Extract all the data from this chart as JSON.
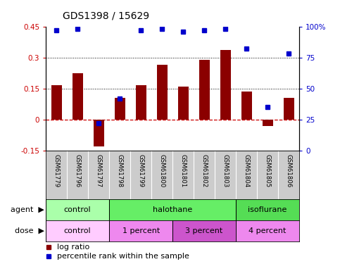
{
  "title": "GDS1398 / 15629",
  "samples": [
    "GSM61779",
    "GSM61796",
    "GSM61797",
    "GSM61798",
    "GSM61799",
    "GSM61800",
    "GSM61801",
    "GSM61802",
    "GSM61803",
    "GSM61804",
    "GSM61805",
    "GSM61806"
  ],
  "log_ratio": [
    0.165,
    0.225,
    -0.13,
    0.105,
    0.165,
    0.265,
    0.16,
    0.29,
    0.335,
    0.135,
    -0.03,
    0.105
  ],
  "percentile_rank": [
    97,
    98,
    22,
    42,
    97,
    98,
    96,
    97,
    98,
    82,
    35,
    78
  ],
  "ylim_left": [
    -0.15,
    0.45
  ],
  "ylim_right": [
    0,
    100
  ],
  "bar_color": "#8B0000",
  "dot_color": "#0000CC",
  "zero_line_color": "#CC0000",
  "left_tick_color": "#CC0000",
  "right_tick_color": "#0000CC",
  "agent_groups": [
    {
      "label": "control",
      "start": 0,
      "end": 3,
      "color": "#AAFFAA"
    },
    {
      "label": "halothane",
      "start": 3,
      "end": 9,
      "color": "#66EE66"
    },
    {
      "label": "isoflurane",
      "start": 9,
      "end": 12,
      "color": "#55DD55"
    }
  ],
  "dose_groups": [
    {
      "label": "control",
      "start": 0,
      "end": 3,
      "color": "#FFCCFF"
    },
    {
      "label": "1 percent",
      "start": 3,
      "end": 6,
      "color": "#EE88EE"
    },
    {
      "label": "3 percent",
      "start": 6,
      "end": 9,
      "color": "#CC55CC"
    },
    {
      "label": "4 percent",
      "start": 9,
      "end": 12,
      "color": "#EE88EE"
    }
  ],
  "legend_bar_label": "log ratio",
  "legend_dot_label": "percentile rank within the sample",
  "label_bg_color": "#CCCCCC",
  "plot_bg_color": "#FFFFFF"
}
